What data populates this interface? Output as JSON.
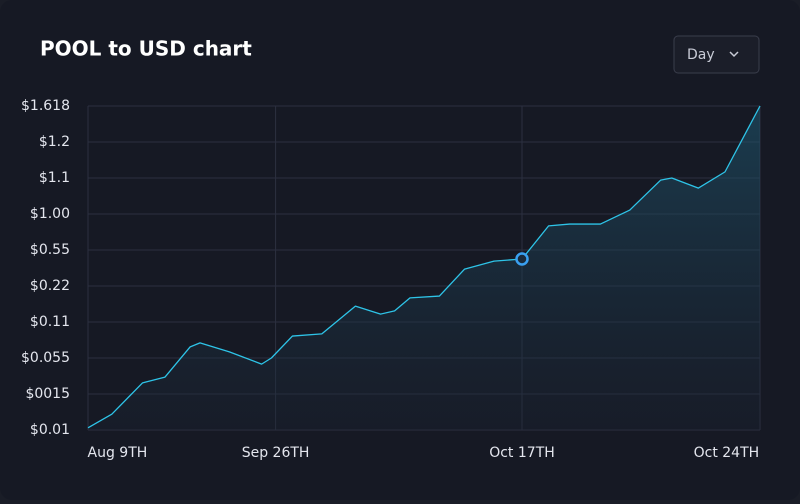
{
  "header": {
    "title": "POOL to USD chart",
    "dropdown": "Day"
  },
  "chart_data": {
    "type": "line",
    "x": [
      0,
      1.7,
      3.9,
      5.5,
      7.3,
      8,
      10.1,
      12.4,
      13.1,
      14.6,
      16.7,
      19.1,
      20.9,
      21.9,
      23,
      25.1,
      26.9,
      29,
      31,
      32.9,
      34.4,
      36.6,
      38.7,
      40.9,
      41.7,
      43.6,
      45.5,
      48
    ],
    "series": [
      {
        "name": "POOL",
        "color": "#2ec4e8",
        "values": [
          0.06,
          0.44,
          1.31,
          1.47,
          2.31,
          2.42,
          2.17,
          1.83,
          2.0,
          2.61,
          2.67,
          3.44,
          3.22,
          3.31,
          3.67,
          3.72,
          4.47,
          4.69,
          4.75,
          5.67,
          5.72,
          5.72,
          6.11,
          6.94,
          7.0,
          6.72,
          7.17,
          9.0
        ]
      }
    ],
    "highlight_index": 18,
    "xlim": [
      0,
      48
    ],
    "xticks": [
      {
        "value": 2.1,
        "label": "Aug 9TH"
      },
      {
        "value": 13.4,
        "label": "Sep 26TH"
      },
      {
        "value": 31,
        "label": "Oct 17TH"
      },
      {
        "value": 45.6,
        "label": "Oct 24TH"
      }
    ],
    "ylim": [
      0,
      9
    ],
    "yticks": [
      {
        "value": 0,
        "label": "$0.01"
      },
      {
        "value": 1,
        "label": "$0015"
      },
      {
        "value": 2,
        "label": "$0.055"
      },
      {
        "value": 3,
        "label": "$0.11"
      },
      {
        "value": 4,
        "label": "$0.22"
      },
      {
        "value": 5,
        "label": "$0.55"
      },
      {
        "value": 6,
        "label": "$1.00"
      },
      {
        "value": 7,
        "label": "$1.1"
      },
      {
        "value": 8,
        "label": "$1.2"
      },
      {
        "value": 9,
        "label": "$1.618"
      }
    ],
    "grid": true
  }
}
